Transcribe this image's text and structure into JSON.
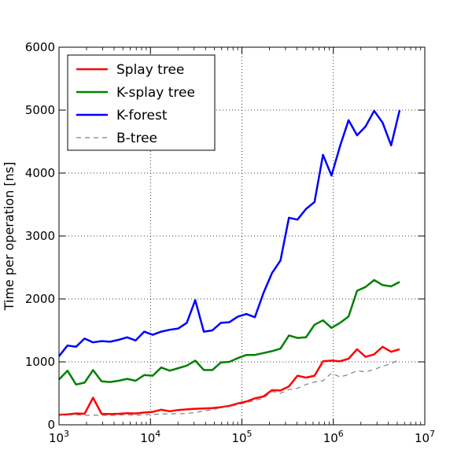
{
  "chart_data": {
    "type": "line",
    "title": "",
    "xlabel": "",
    "ylabel": "Time per operation [ns]",
    "xscale": "log",
    "xlim": [
      1000,
      10000000
    ],
    "ylim": [
      0,
      6000
    ],
    "grid": true,
    "legend_position": "top-left",
    "x_ticks": [
      {
        "value": 1000,
        "base": "10",
        "exp": "3"
      },
      {
        "value": 10000,
        "base": "10",
        "exp": "4"
      },
      {
        "value": 100000,
        "base": "10",
        "exp": "5"
      },
      {
        "value": 1000000,
        "base": "10",
        "exp": "6"
      },
      {
        "value": 10000000,
        "base": "10",
        "exp": "7"
      }
    ],
    "y_ticks": [
      "0",
      "1000",
      "2000",
      "3000",
      "4000",
      "5000",
      "6000"
    ],
    "x": [
      1000,
      1239,
      1536,
      1903,
      2358,
      2922,
      3621,
      4487,
      5560,
      6890,
      8538,
      10580,
      13110,
      16245,
      20130,
      24945,
      30911,
      38303,
      47464,
      58815,
      72881,
      90311,
      111909,
      138673,
      171838,
      212935,
      263860,
      326963,
      405160,
      502055,
      622125,
      770910,
      955279,
      1183740,
      1466838,
      1817640,
      2252340,
      2790997,
      3458476,
      4285588,
      5310500
    ],
    "series": [
      {
        "name": "Splay tree",
        "color": "#ff0000",
        "dash": "solid",
        "width": 2.5,
        "values": [
          160,
          165,
          180,
          175,
          430,
          175,
          170,
          175,
          185,
          180,
          195,
          205,
          240,
          215,
          235,
          245,
          255,
          260,
          265,
          280,
          300,
          340,
          370,
          420,
          450,
          550,
          545,
          610,
          780,
          750,
          780,
          1010,
          1020,
          1010,
          1050,
          1200,
          1080,
          1120,
          1240,
          1160,
          1200
        ]
      },
      {
        "name": "K-splay tree",
        "color": "#008000",
        "dash": "solid",
        "width": 2.5,
        "values": [
          720,
          860,
          640,
          670,
          870,
          690,
          680,
          700,
          730,
          700,
          790,
          780,
          910,
          860,
          900,
          940,
          1020,
          870,
          870,
          990,
          1000,
          1060,
          1110,
          1110,
          1140,
          1170,
          1210,
          1420,
          1380,
          1390,
          1590,
          1660,
          1540,
          1620,
          1720,
          2130,
          2190,
          2300,
          2220,
          2200,
          2270
        ]
      },
      {
        "name": "K-forest",
        "color": "#0000ff",
        "dash": "solid",
        "width": 2.5,
        "values": [
          1090,
          1260,
          1240,
          1370,
          1310,
          1330,
          1320,
          1350,
          1390,
          1340,
          1480,
          1430,
          1480,
          1510,
          1530,
          1620,
          1980,
          1480,
          1500,
          1620,
          1630,
          1720,
          1760,
          1710,
          2090,
          2410,
          2610,
          3290,
          3260,
          3430,
          3540,
          4290,
          3960,
          4430,
          4840,
          4600,
          4740,
          4990,
          4800,
          4440,
          5000
        ]
      },
      {
        "name": "B-tree",
        "color": "#7f7f7f",
        "dash": "dashed",
        "width": 1.2,
        "values": [
          150,
          155,
          160,
          150,
          155,
          150,
          150,
          155,
          160,
          150,
          160,
          165,
          170,
          175,
          175,
          180,
          195,
          220,
          240,
          270,
          290,
          320,
          350,
          390,
          420,
          530,
          500,
          560,
          580,
          640,
          680,
          700,
          820,
          760,
          800,
          860,
          840,
          880,
          930,
          970,
          1040
        ]
      }
    ]
  }
}
